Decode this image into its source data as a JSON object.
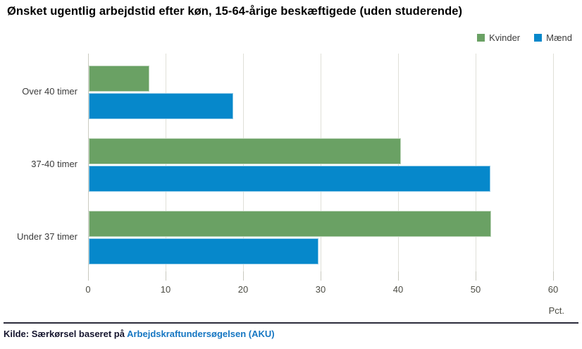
{
  "title": "Ønsket ugentlig arbejdstid efter køn, 15-64-årige beskæftigede (uden studerende)",
  "footer": {
    "source_prefix": "Kilde: Særkørsel baseret på ",
    "link_text": "Arbejdskraftundersøgelsen (AKU)"
  },
  "colors": {
    "kvinder_green": "#6aa164",
    "maend_blue": "#0688cb",
    "gridline": "#e0e0d8",
    "link_blue": "#1576c2",
    "footer_rule": "#2c2c3c"
  },
  "chart_data": {
    "type": "bar",
    "orientation": "horizontal",
    "categories": [
      "Over 40 timer",
      "37-40 timer",
      "Under 37 timer"
    ],
    "series": [
      {
        "name": "Kvinder",
        "color": "#6aa164",
        "values": [
          7.8,
          40.3,
          51.9
        ]
      },
      {
        "name": "Mænd",
        "color": "#0688cb",
        "values": [
          18.6,
          51.8,
          29.6
        ]
      }
    ],
    "xlabel": "Pct.",
    "xlim": [
      0,
      60
    ],
    "xticks": [
      0,
      10,
      20,
      30,
      40,
      50,
      60
    ],
    "grid": true,
    "legend_position": "top-right"
  }
}
